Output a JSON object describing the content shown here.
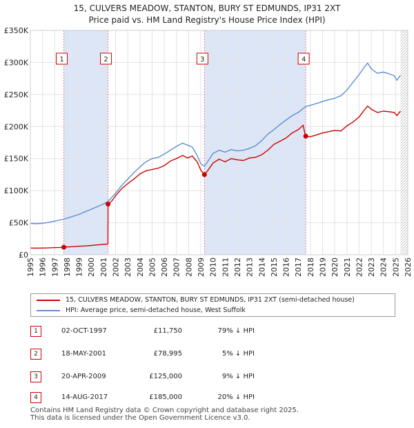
{
  "chart_data": {
    "type": "line",
    "title": "15, CULVERS MEADOW, STANTON, BURY ST EDMUNDS, IP31 2XT",
    "subtitle": "Price paid vs. HM Land Registry's House Price Index (HPI)",
    "xlabel": "",
    "ylabel": "",
    "xlim": [
      1995,
      2026
    ],
    "ylim": [
      0,
      350000
    ],
    "y_ticks": [
      {
        "value": 0,
        "label": "£0"
      },
      {
        "value": 50000,
        "label": "£50K"
      },
      {
        "value": 100000,
        "label": "£100K"
      },
      {
        "value": 150000,
        "label": "£150K"
      },
      {
        "value": 200000,
        "label": "£200K"
      },
      {
        "value": 250000,
        "label": "£250K"
      },
      {
        "value": 300000,
        "label": "£300K"
      },
      {
        "value": 350000,
        "label": "£350K"
      }
    ],
    "x_ticks": [
      "1995",
      "1996",
      "1997",
      "1998",
      "1999",
      "2000",
      "2001",
      "2002",
      "2003",
      "2004",
      "2005",
      "2006",
      "2007",
      "2008",
      "2009",
      "2010",
      "2011",
      "2012",
      "2013",
      "2014",
      "2015",
      "2016",
      "2017",
      "2018",
      "2019",
      "2020",
      "2021",
      "2022",
      "2023",
      "2024",
      "2025",
      "2026"
    ],
    "grid": true,
    "legend_position": "below",
    "colors": {
      "property": "#cc0000",
      "hpi": "#5b8fcf",
      "shade": "#dde6f7",
      "grid": "#e2e2e2",
      "marker": "#cc0000",
      "vline": "#e08080"
    },
    "series": [
      {
        "name": "15, CULVERS MEADOW, STANTON, BURY ST EDMUNDS, IP31 2XT (semi-detached house)",
        "color": "#cc0000",
        "points": [
          [
            1995.0,
            10500
          ],
          [
            1995.5,
            10300
          ],
          [
            1996.0,
            10500
          ],
          [
            1996.5,
            10700
          ],
          [
            1997.0,
            11100
          ],
          [
            1997.5,
            11400
          ],
          [
            1997.75,
            11750
          ],
          [
            1998.0,
            12200
          ],
          [
            1998.5,
            12600
          ],
          [
            1999.0,
            13200
          ],
          [
            1999.5,
            13700
          ],
          [
            2000.0,
            14400
          ],
          [
            2000.5,
            15400
          ],
          [
            2001.0,
            16200
          ],
          [
            2001.37,
            16800
          ],
          [
            2001.38,
            78995
          ],
          [
            2001.7,
            84000
          ],
          [
            2002.0,
            92000
          ],
          [
            2002.5,
            103000
          ],
          [
            2003.0,
            111000
          ],
          [
            2003.5,
            118000
          ],
          [
            2004.0,
            126000
          ],
          [
            2004.5,
            131000
          ],
          [
            2005.0,
            133000
          ],
          [
            2005.5,
            135000
          ],
          [
            2006.0,
            139000
          ],
          [
            2006.5,
            146000
          ],
          [
            2007.0,
            150000
          ],
          [
            2007.5,
            155000
          ],
          [
            2007.9,
            151000
          ],
          [
            2008.3,
            154000
          ],
          [
            2008.7,
            145000
          ],
          [
            2009.0,
            132000
          ],
          [
            2009.3,
            125000
          ],
          [
            2009.6,
            132000
          ],
          [
            2010.0,
            143000
          ],
          [
            2010.5,
            149000
          ],
          [
            2011.0,
            145000
          ],
          [
            2011.5,
            150000
          ],
          [
            2012.0,
            148000
          ],
          [
            2012.5,
            147000
          ],
          [
            2013.0,
            151000
          ],
          [
            2013.5,
            152000
          ],
          [
            2014.0,
            156000
          ],
          [
            2014.5,
            163000
          ],
          [
            2015.0,
            172000
          ],
          [
            2015.5,
            177000
          ],
          [
            2016.0,
            182000
          ],
          [
            2016.5,
            190000
          ],
          [
            2017.0,
            195000
          ],
          [
            2017.4,
            202000
          ],
          [
            2017.6,
            185000
          ],
          [
            2018.0,
            184000
          ],
          [
            2018.5,
            187000
          ],
          [
            2019.0,
            190000
          ],
          [
            2019.5,
            192000
          ],
          [
            2020.0,
            194000
          ],
          [
            2020.5,
            193000
          ],
          [
            2021.0,
            201000
          ],
          [
            2021.5,
            207000
          ],
          [
            2022.0,
            215000
          ],
          [
            2022.4,
            225000
          ],
          [
            2022.7,
            232000
          ],
          [
            2023.0,
            227000
          ],
          [
            2023.5,
            222000
          ],
          [
            2024.0,
            224000
          ],
          [
            2024.5,
            223000
          ],
          [
            2024.9,
            222000
          ],
          [
            2025.1,
            217000
          ],
          [
            2025.4,
            224000
          ]
        ]
      },
      {
        "name": "HPI: Average price, semi-detached house, West Suffolk",
        "color": "#5b8fcf",
        "points": [
          [
            1995.0,
            49000
          ],
          [
            1995.5,
            48500
          ],
          [
            1996.0,
            49000
          ],
          [
            1996.5,
            50500
          ],
          [
            1997.0,
            52500
          ],
          [
            1997.75,
            55500
          ],
          [
            1998.0,
            57000
          ],
          [
            1998.5,
            60000
          ],
          [
            1999.0,
            63000
          ],
          [
            1999.5,
            67000
          ],
          [
            2000.0,
            71000
          ],
          [
            2000.5,
            75000
          ],
          [
            2001.0,
            79000
          ],
          [
            2001.38,
            83000
          ],
          [
            2002.0,
            96000
          ],
          [
            2002.5,
            108000
          ],
          [
            2003.0,
            118000
          ],
          [
            2003.5,
            128000
          ],
          [
            2004.0,
            137000
          ],
          [
            2004.5,
            145000
          ],
          [
            2005.0,
            150000
          ],
          [
            2005.5,
            152000
          ],
          [
            2006.0,
            157000
          ],
          [
            2006.5,
            163000
          ],
          [
            2007.0,
            169000
          ],
          [
            2007.5,
            174000
          ],
          [
            2007.9,
            171000
          ],
          [
            2008.3,
            168000
          ],
          [
            2008.7,
            155000
          ],
          [
            2009.0,
            142000
          ],
          [
            2009.3,
            138000
          ],
          [
            2009.6,
            146000
          ],
          [
            2010.0,
            158000
          ],
          [
            2010.5,
            163000
          ],
          [
            2011.0,
            160000
          ],
          [
            2011.5,
            164000
          ],
          [
            2012.0,
            162000
          ],
          [
            2012.5,
            163000
          ],
          [
            2013.0,
            166000
          ],
          [
            2013.5,
            170000
          ],
          [
            2014.0,
            178000
          ],
          [
            2014.5,
            188000
          ],
          [
            2015.0,
            195000
          ],
          [
            2015.5,
            203000
          ],
          [
            2016.0,
            210000
          ],
          [
            2016.5,
            217000
          ],
          [
            2017.0,
            222000
          ],
          [
            2017.6,
            231000
          ],
          [
            2018.0,
            233000
          ],
          [
            2018.5,
            236000
          ],
          [
            2019.0,
            239000
          ],
          [
            2019.5,
            242000
          ],
          [
            2020.0,
            244000
          ],
          [
            2020.5,
            248000
          ],
          [
            2021.0,
            257000
          ],
          [
            2021.5,
            269000
          ],
          [
            2022.0,
            281000
          ],
          [
            2022.4,
            292000
          ],
          [
            2022.7,
            299000
          ],
          [
            2023.0,
            290000
          ],
          [
            2023.5,
            283000
          ],
          [
            2024.0,
            285000
          ],
          [
            2024.5,
            282000
          ],
          [
            2024.9,
            279000
          ],
          [
            2025.1,
            272000
          ],
          [
            2025.4,
            280000
          ]
        ]
      }
    ],
    "shaded_ranges": [
      [
        1997.75,
        2001.38
      ],
      [
        2009.3,
        2017.62
      ]
    ],
    "hatched_from": 2025.4,
    "sales": [
      {
        "num": "1",
        "x": 1997.75,
        "price": 11750
      },
      {
        "num": "2",
        "x": 2001.38,
        "price": 78995
      },
      {
        "num": "3",
        "x": 2009.3,
        "price": 125000
      },
      {
        "num": "4",
        "x": 2017.62,
        "price": 185000
      }
    ]
  },
  "legend": {
    "property_label": "15, CULVERS MEADOW, STANTON, BURY ST EDMUNDS, IP31 2XT (semi-detached house)",
    "hpi_label": "HPI: Average price, semi-detached house, West Suffolk"
  },
  "sales_table": [
    {
      "num": "1",
      "date": "02-OCT-1997",
      "price": "£11,750",
      "hpi": "79% ↓ HPI"
    },
    {
      "num": "2",
      "date": "18-MAY-2001",
      "price": "£78,995",
      "hpi": "5% ↓ HPI"
    },
    {
      "num": "3",
      "date": "20-APR-2009",
      "price": "£125,000",
      "hpi": "9% ↓ HPI"
    },
    {
      "num": "4",
      "date": "14-AUG-2017",
      "price": "£185,000",
      "hpi": "20% ↓ HPI"
    }
  ],
  "footer": {
    "line1": "Contains HM Land Registry data © Crown copyright and database right 2025.",
    "line2": "This data is licensed under the Open Government Licence v3.0."
  }
}
